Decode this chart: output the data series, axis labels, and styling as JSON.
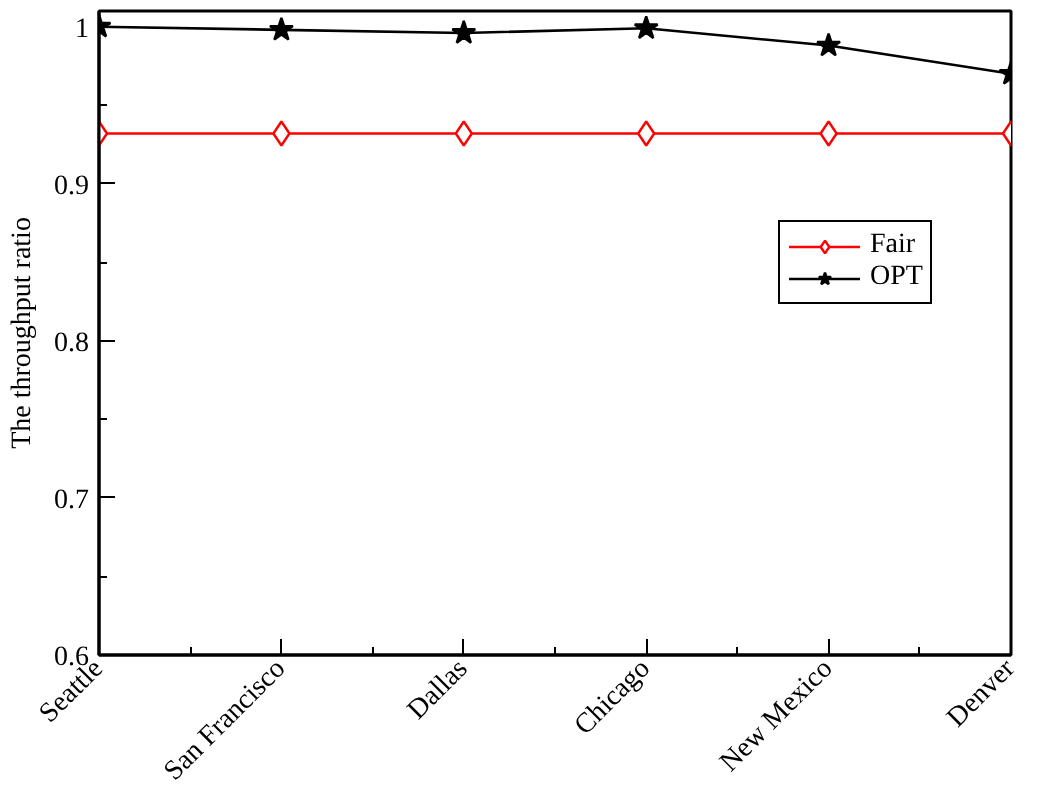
{
  "chart_data": {
    "type": "line",
    "ylabel": "The throughput ratio",
    "categories": [
      "Seattle",
      "San Francisco",
      "Dallas",
      "Chicago",
      "New Mexico",
      "Denver"
    ],
    "series": [
      {
        "name": "Fair",
        "color": "#ff0000",
        "marker": "diamond",
        "values": [
          0.932,
          0.932,
          0.932,
          0.932,
          0.932,
          0.932
        ]
      },
      {
        "name": "OPT",
        "color": "#000000",
        "marker": "star",
        "values": [
          1.0,
          0.998,
          0.996,
          0.999,
          0.988,
          0.97
        ]
      }
    ],
    "ylim": [
      0.6,
      1.01
    ],
    "yticks": [
      0.6,
      0.7,
      0.8,
      0.9,
      1,
      {
        "value": 0.65,
        "label": null
      },
      {
        "value": 0.75,
        "label": null
      },
      {
        "value": 0.85,
        "label": null
      },
      {
        "value": 0.95,
        "label": null
      }
    ],
    "grid": false,
    "legend": "right",
    "line_style": "solid"
  }
}
